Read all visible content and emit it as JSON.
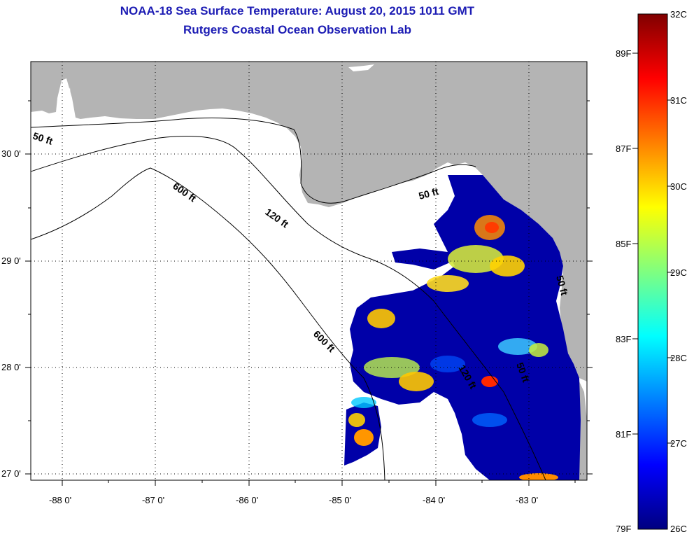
{
  "titles": {
    "line1": "NOAA-18 Sea Surface Temperature:  August 20, 2015 1011 GMT",
    "line2": "Rutgers Coastal Ocean Observation Lab"
  },
  "map": {
    "lon_range": [
      -88.35,
      -82.45
    ],
    "lat_range": [
      26.96,
      30.85
    ],
    "lon_ticks": [
      {
        "value": -88,
        "label": "-88 0'"
      },
      {
        "value": -87,
        "label": "-87 0'"
      },
      {
        "value": -86,
        "label": "-86 0'"
      },
      {
        "value": -85,
        "label": "-85 0'"
      },
      {
        "value": -84,
        "label": "-84 0'"
      },
      {
        "value": -83,
        "label": "-83 0'"
      }
    ],
    "lat_ticks": [
      {
        "value": 30,
        "label": "30 0'"
      },
      {
        "value": 29,
        "label": "29 0'"
      },
      {
        "value": 28,
        "label": "28 0'"
      },
      {
        "value": 27,
        "label": "27 0'"
      }
    ],
    "contour_labels": {
      "c50a": "50 ft",
      "c600a": "600 ft",
      "c120a": "120 ft",
      "c50b": "50 ft",
      "c600b": "600 ft",
      "c120b": "120 ft",
      "c50c": "50 ft",
      "c50d": "50 ft"
    }
  },
  "colorbar": {
    "celsius_labels": [
      "32C",
      "31C",
      "30C",
      "29C",
      "28C",
      "27C",
      "26C"
    ],
    "fahrenheit_labels": [
      "89F",
      "87F",
      "85F",
      "83F",
      "81F",
      "79F"
    ],
    "celsius_range": [
      26,
      32
    ]
  },
  "colors": {
    "land": "#b4b4b4",
    "title": "#1c1cb4",
    "sst_cold": "#0000a0",
    "sst_warm": "#ff7f00"
  }
}
